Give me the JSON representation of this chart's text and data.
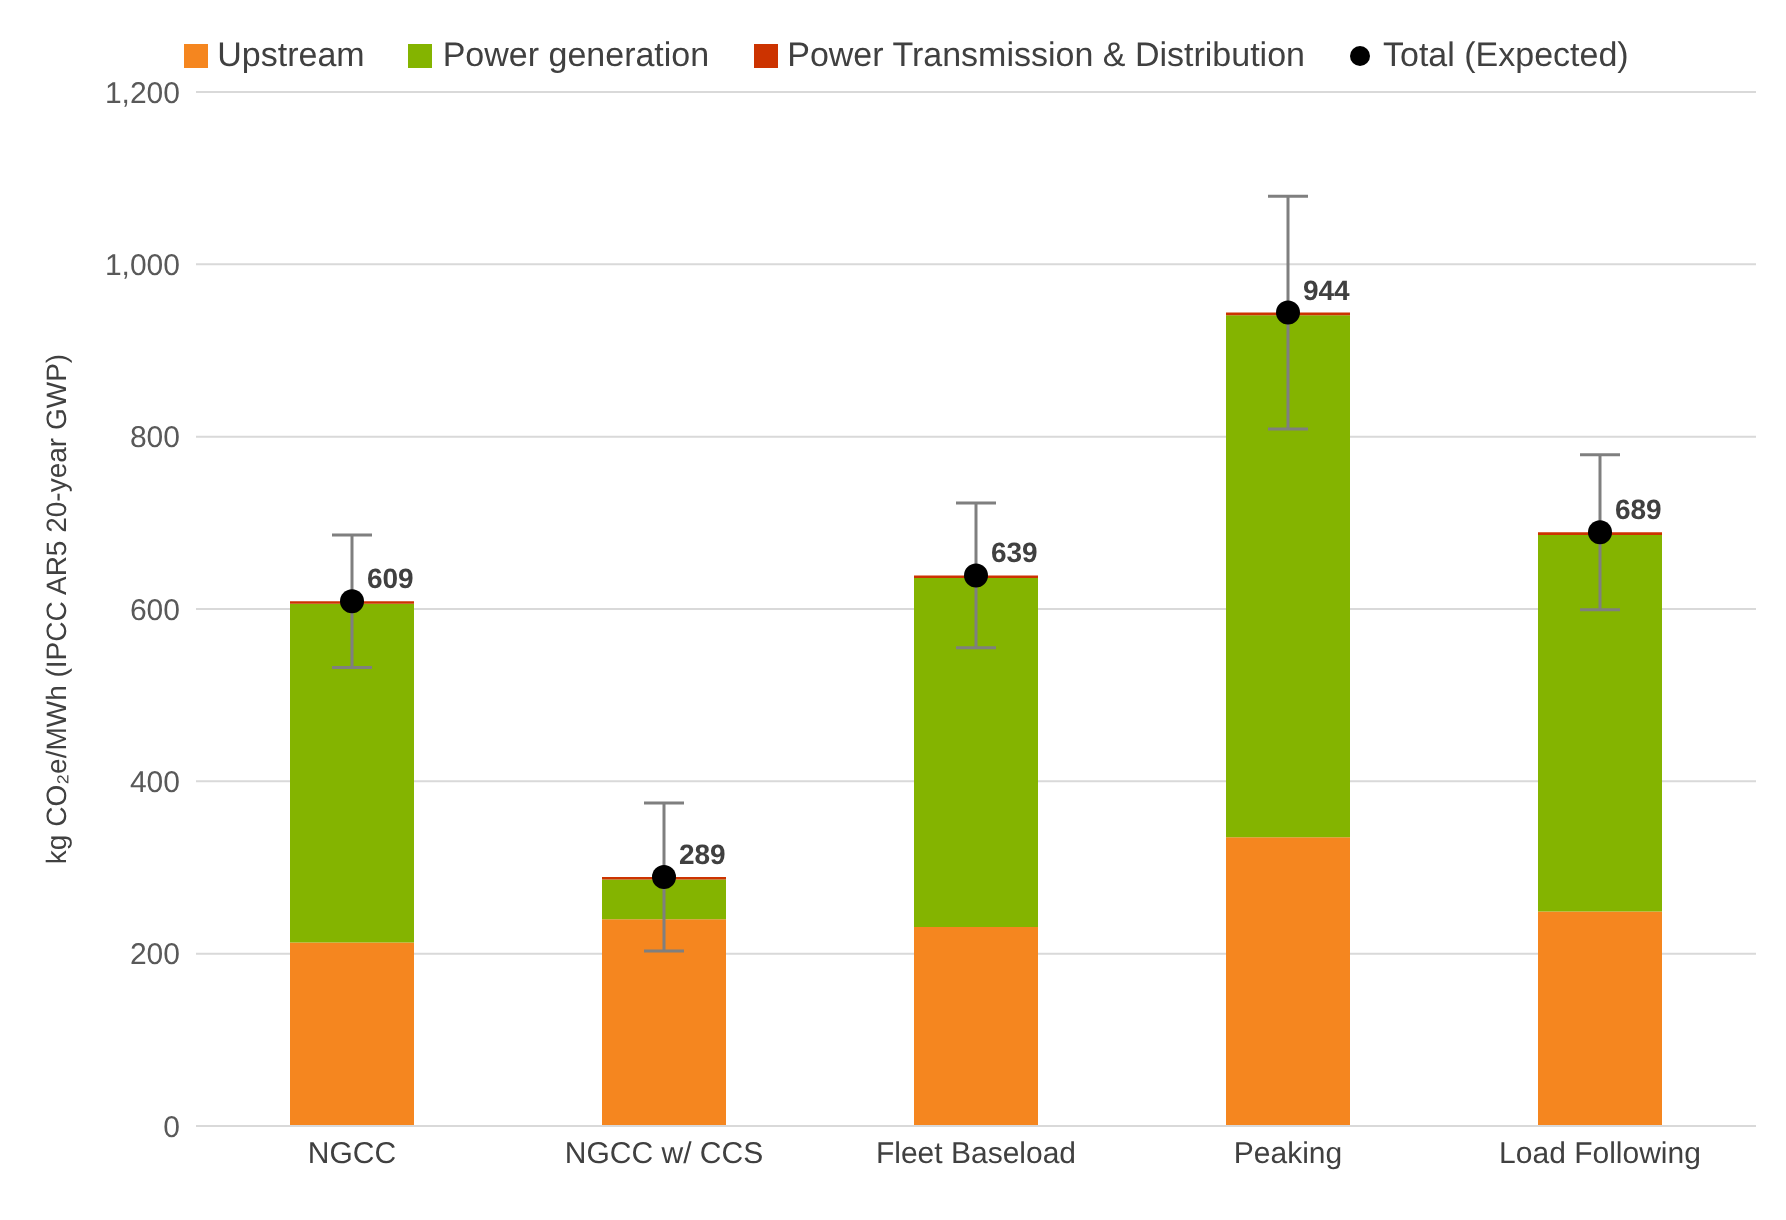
{
  "chart_data": {
    "type": "bar",
    "stacked": true,
    "ylabel": "kg CO₂e/MWh (IPCC AR5 20-year GWP)",
    "categories": [
      "NGCC",
      "NGCC w/ CCS",
      "Fleet Baseload",
      "Peaking",
      "Load Following"
    ],
    "series": [
      {
        "name": "Upstream",
        "color": "#f5861f",
        "values": [
          213,
          240,
          231,
          335,
          249
        ]
      },
      {
        "name": "Power generation",
        "color": "#84b400",
        "values": [
          393,
          46,
          405,
          606,
          437
        ]
      },
      {
        "name": "Power Transmission & Distribution",
        "color": "#cc3300",
        "values": [
          3,
          3,
          3,
          3,
          3
        ]
      },
      {
        "name": "Total (Expected)",
        "type": "scatter",
        "color": "#000000",
        "values": [
          609,
          289,
          639,
          944,
          689
        ],
        "errors": [
          77,
          86,
          84,
          135,
          90
        ],
        "value_labels": [
          "609",
          "289",
          "639",
          "944",
          "689"
        ]
      }
    ],
    "ylim": [
      0,
      1200
    ],
    "yticks": [
      0,
      200,
      400,
      600,
      800,
      {
        "value": 1000,
        "label": "1,000"
      },
      {
        "value": 1200,
        "label": "1,200"
      }
    ],
    "grid": "y",
    "legend": "top",
    "marker": "circle"
  }
}
